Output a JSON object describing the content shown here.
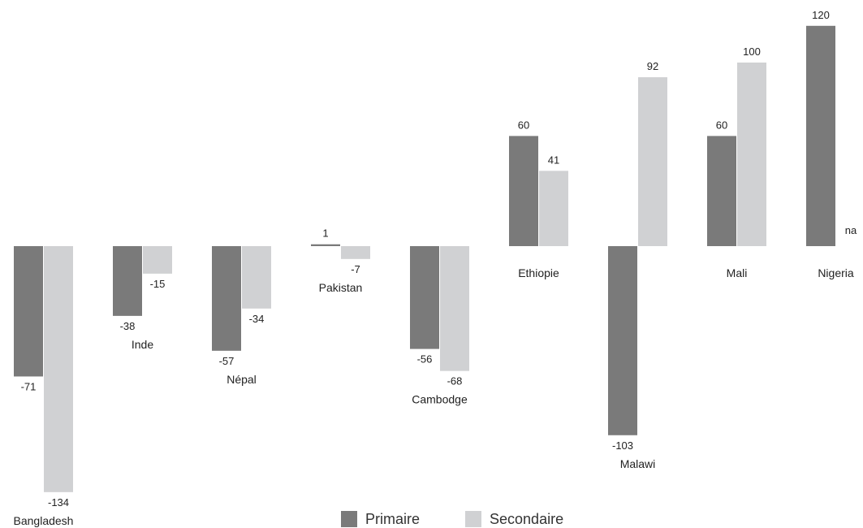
{
  "chart_data": {
    "type": "bar",
    "categories": [
      "Bangladesh",
      "Inde",
      "Népal",
      "Pakistan",
      "Cambodge",
      "Ethiopie",
      "Malawi",
      "Mali",
      "Nigeria"
    ],
    "series": [
      {
        "name": "Primaire",
        "values": [
          -71,
          -38,
          -57,
          1,
          -56,
          60,
          -103,
          60,
          120
        ],
        "color": "#7a7a7a"
      },
      {
        "name": "Secondaire",
        "values": [
          -134,
          -15,
          -34,
          -7,
          -68,
          41,
          92,
          100,
          null
        ],
        "color": "#d0d1d3"
      }
    ],
    "value_labels": {
      "Primaire": [
        "-71",
        "-38",
        "-57",
        "1",
        "-56",
        "60",
        "-103",
        "60",
        "120"
      ],
      "Secondaire": [
        "-134",
        "-15",
        "-34",
        "-7",
        "-68",
        "41",
        "92",
        "100",
        "na"
      ]
    },
    "title": "",
    "xlabel": "",
    "ylabel": "",
    "ylim": [
      -134,
      120
    ],
    "grid": false,
    "legend_position": "bottom-center"
  }
}
